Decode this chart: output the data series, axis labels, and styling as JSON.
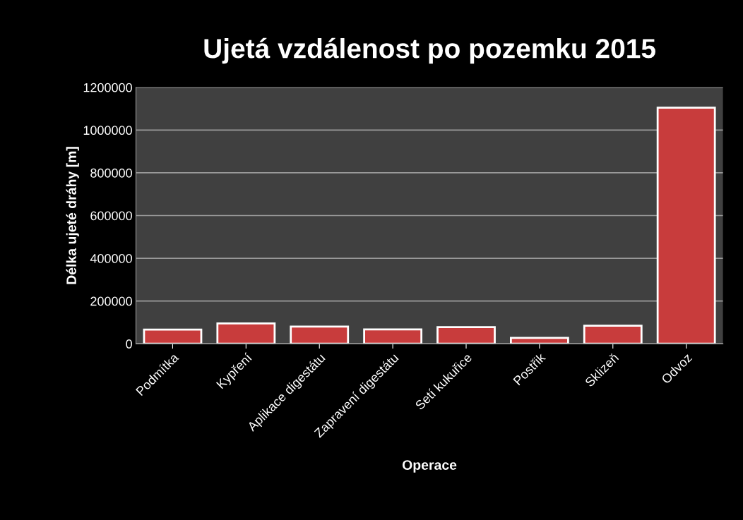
{
  "chart_data": {
    "type": "bar",
    "title": "Ujetá vzdálenost po pozemku 2015",
    "xlabel": "Operace",
    "ylabel": "Délka ujeté dráhy [m]",
    "categories": [
      "Podmítka",
      "Kypření",
      "Aplikace digestátu",
      "Zapravení digestátu",
      "Setí kukuřice",
      "Postřik",
      "Sklizeň",
      "Odvoz"
    ],
    "values": [
      66000,
      95000,
      80000,
      67000,
      78000,
      27000,
      84000,
      1105000
    ],
    "color": "#c83c3c",
    "ylim": [
      0,
      1200000
    ],
    "yticks": [
      0,
      200000,
      400000,
      600000,
      800000,
      1000000,
      1200000
    ],
    "grid": "y"
  }
}
